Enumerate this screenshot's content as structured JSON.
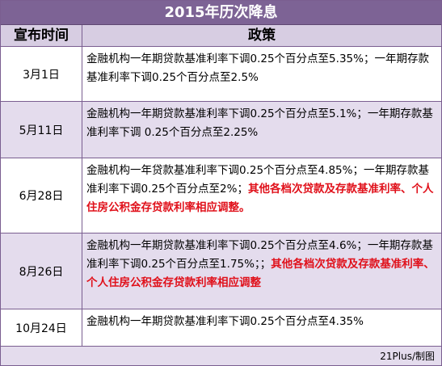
{
  "title": "2015年历次降息",
  "headers": {
    "date": "宣布时间",
    "policy": "政策"
  },
  "rows": [
    {
      "date": "3月1日",
      "text": "金融机构一年期贷款基准利率下调0.25个百分点至5.35%；一年期存款基准利率下调0.25个百分点至2.5%",
      "highlight": ""
    },
    {
      "date": "5月11日",
      "text": "金融机构一年期贷款基准利率下调0.25个百分点至5.1%；一年期存款基准利率下调 0.25个百分点至2.25%",
      "highlight": ""
    },
    {
      "date": "6月28日",
      "text": "金融机构一年贷款基准利率下调0.25个百分点至4.85%；一年期存款基准利率下调0.25个百分点至2%；",
      "highlight": "其他各档次贷款及存款基准利率、个人住房公积金存贷款利率相应调整。"
    },
    {
      "date": "8月26日",
      "text": "金融机构一年期贷款基准利率下调0.25个百分点至4.6%；一年期存款基准利率下调0.25个百分点至1.75%；；",
      "highlight": "其他各档次贷款及存款基准利率、个人住房公积金存贷款利率相应调整"
    },
    {
      "date": "10月24日",
      "text": "金融机构一年期贷款基准利率下调0.25个百分点至4.35%",
      "highlight": ""
    }
  ],
  "footer": {
    "credit": "21Plus/制图"
  },
  "colors": {
    "title_bg": "#7d6395",
    "header_bg": "#d7cde2",
    "alt_row_bg": "#e4dced",
    "highlight": "#e0101a"
  }
}
